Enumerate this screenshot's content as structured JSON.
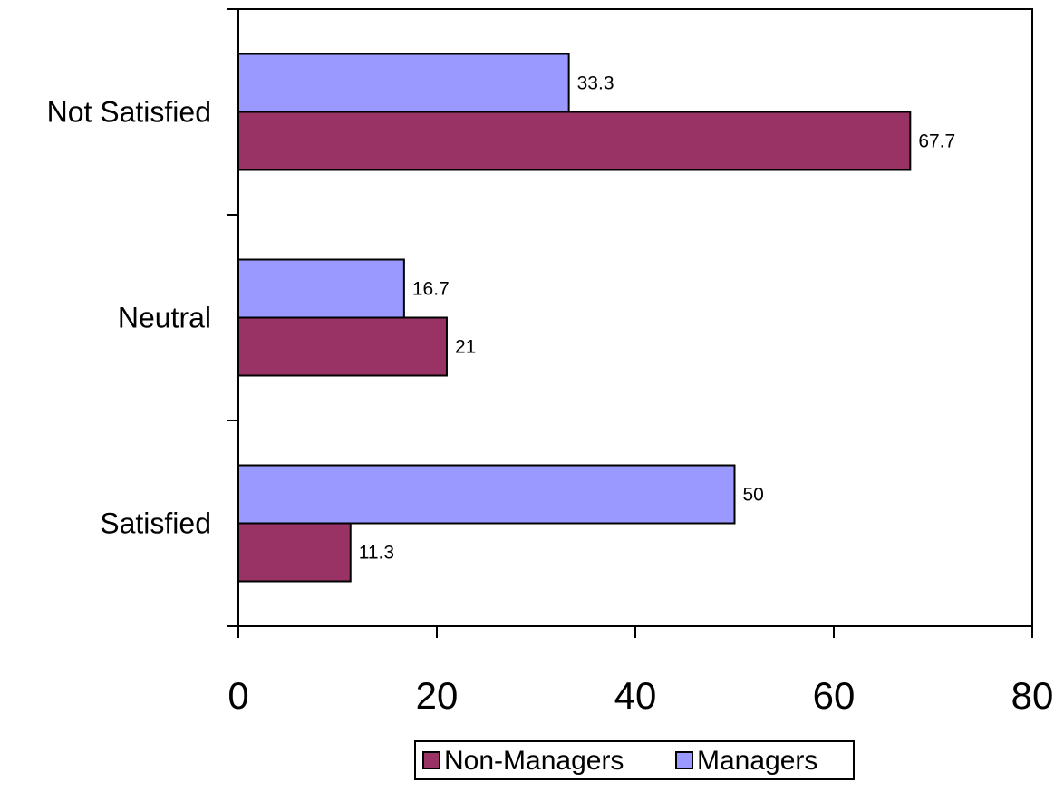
{
  "chart_data": {
    "type": "bar",
    "orientation": "horizontal",
    "categories": [
      "Not Satisfied",
      "Neutral",
      "Satisfied"
    ],
    "series": [
      {
        "name": "Non-Managers",
        "values": [
          67.7,
          21,
          11.3
        ],
        "color": "#993366"
      },
      {
        "name": "Managers",
        "values": [
          33.3,
          16.7,
          50
        ],
        "color": "#9999ff"
      }
    ],
    "data_labels": {
      "Non-Managers": [
        "67.7",
        "21",
        "11.3"
      ],
      "Managers": [
        "33.3",
        "16.7",
        "50"
      ]
    },
    "xlim": [
      0,
      80
    ],
    "xticks": [
      0,
      20,
      40,
      60,
      80
    ],
    "xtick_labels": [
      "0",
      "20",
      "40",
      "60",
      "80"
    ],
    "title": "",
    "xlabel": "",
    "ylabel": "",
    "grid": false,
    "legend": {
      "position": "bottom",
      "entries": [
        "Non-Managers",
        "Managers"
      ]
    }
  }
}
